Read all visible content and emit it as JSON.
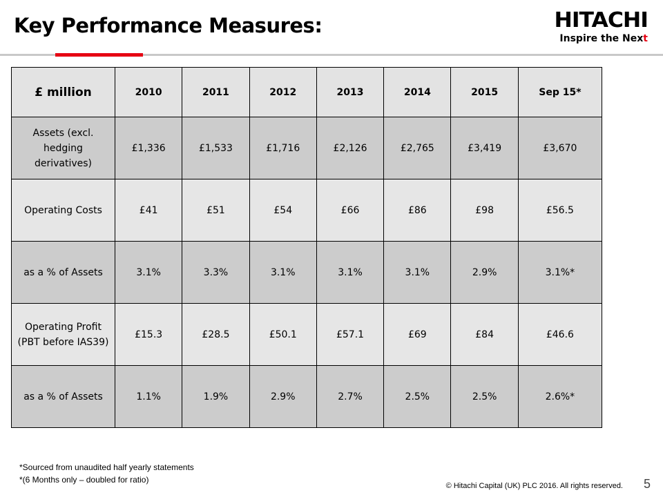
{
  "header": {
    "title": "Key Performance Measures:",
    "logo_word": "HITACHI",
    "logo_tagline_main": "Inspire the Nex",
    "logo_tagline_end": "t"
  },
  "colors": {
    "accent": "#e60012",
    "header_bg": "#e3e3e3",
    "row_dark": "#cccccc",
    "row_light": "#e6e6e6"
  },
  "table": {
    "corner": "£ million",
    "columns": [
      "2010",
      "2011",
      "2012",
      "2013",
      "2014",
      "2015",
      "Sep 15*"
    ],
    "rows": [
      {
        "label": "Assets (excl. hedging derivatives)",
        "values": [
          "£1,336",
          "£1,533",
          "£1,716",
          "£2,126",
          "£2,765",
          "£3,419",
          "£3,670"
        ]
      },
      {
        "label": "Operating Costs",
        "values": [
          "£41",
          "£51",
          "£54",
          "£66",
          "£86",
          "£98",
          "£56.5"
        ]
      },
      {
        "label": "as a % of Assets",
        "values": [
          "3.1%",
          "3.3%",
          "3.1%",
          "3.1%",
          "3.1%",
          "2.9%",
          "3.1%*"
        ]
      },
      {
        "label": "Operating Profit (PBT before IAS39)",
        "values": [
          "£15.3",
          "£28.5",
          "£50.1",
          "£57.1",
          "£69",
          "£84",
          "£46.6"
        ]
      },
      {
        "label": "as a % of Assets",
        "values": [
          "1.1%",
          "1.9%",
          "2.9%",
          "2.7%",
          "2.5%",
          "2.5%",
          "2.6%*"
        ]
      }
    ]
  },
  "footer": {
    "note1": "*Sourced from unaudited half yearly statements",
    "note2": "*(6 Months only – doubled for ratio)",
    "copyright": "© Hitachi Capital (UK) PLC 2016. All rights reserved.",
    "page_number": "5"
  }
}
